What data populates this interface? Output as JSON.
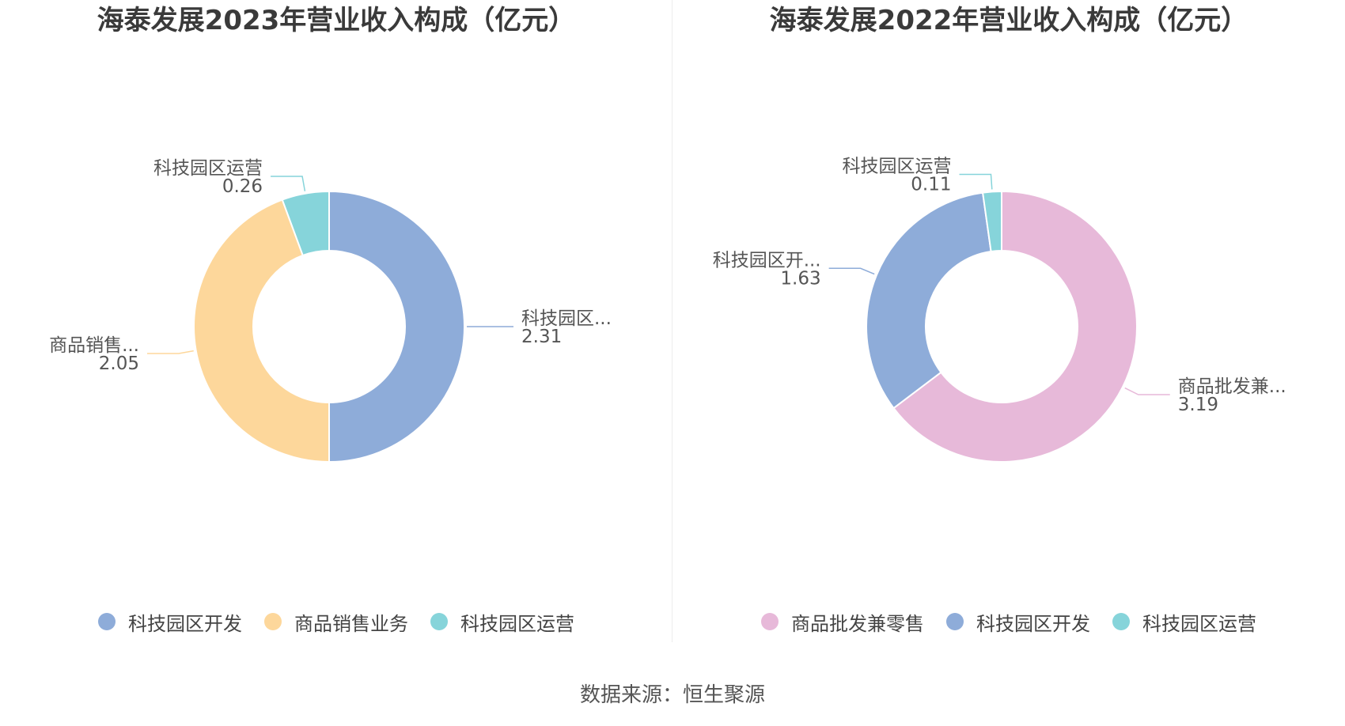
{
  "source": "数据来源：恒生聚源",
  "chart_data": [
    {
      "type": "pie",
      "title": "海泰发展2023年营业收入构成（亿元）",
      "series": [
        {
          "name": "科技园区开发",
          "label": "科技园区...",
          "value": 2.31,
          "value_label": "2.31",
          "color": "#8eacd9"
        },
        {
          "name": "商品销售业务",
          "label": "商品销售...",
          "value": 2.05,
          "value_label": "2.05",
          "color": "#fdd79b"
        },
        {
          "name": "科技园区运营",
          "label": "科技园区运营",
          "value": 0.26,
          "value_label": "0.26",
          "color": "#86d4da"
        }
      ],
      "legend": [
        "科技园区开发",
        "商品销售业务",
        "科技园区运营"
      ],
      "legend_position": "bottom"
    },
    {
      "type": "pie",
      "title": "海泰发展2022年营业收入构成（亿元）",
      "series": [
        {
          "name": "商品批发兼零售",
          "label": "商品批发兼...",
          "value": 3.19,
          "value_label": "3.19",
          "color": "#e7b9d9"
        },
        {
          "name": "科技园区开发",
          "label": "科技园区开...",
          "value": 1.63,
          "value_label": "1.63",
          "color": "#8eacd9"
        },
        {
          "name": "科技园区运营",
          "label": "科技园区运营",
          "value": 0.11,
          "value_label": "0.11",
          "color": "#86d4da"
        }
      ],
      "legend": [
        "商品批发兼零售",
        "科技园区开发",
        "科技园区运营"
      ],
      "legend_position": "bottom"
    }
  ]
}
